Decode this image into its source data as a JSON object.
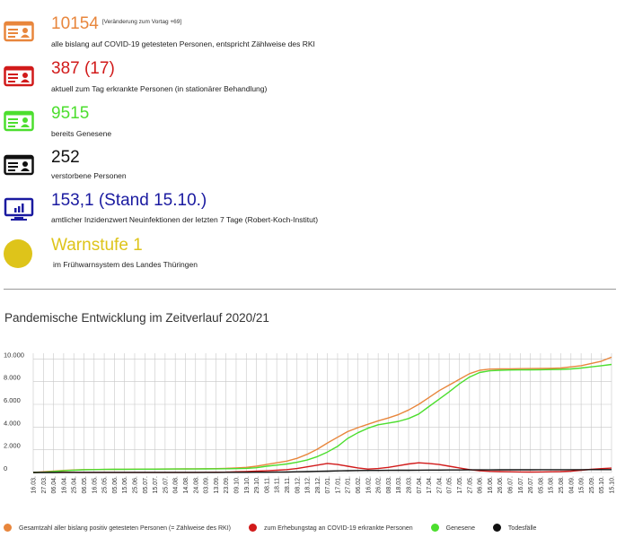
{
  "stats": {
    "tested": {
      "value": "10154",
      "note": "[Veränderung zum Vortag +69]",
      "label": "alle bislang auf COVID-19 getesteten Personen, entspricht Zählweise des RKI",
      "color": "#e8863c",
      "icon": "id-card-icon"
    },
    "sick": {
      "value": "387 (17)",
      "label": "aktuell zum Tag erkrankte Personen (in stationärer Behandlung)",
      "color": "#d11a1a",
      "icon": "id-card-icon"
    },
    "recovered": {
      "value": "9515",
      "label": "bereits Genesene",
      "color": "#4cde2e",
      "icon": "id-card-icon"
    },
    "deaths": {
      "value": "252",
      "label": "verstorbene Personen",
      "color": "#111111",
      "icon": "id-card-icon"
    },
    "incidence": {
      "value": "153,1 (Stand 15.10.)",
      "label": "amtlicher Inzidenzwert Neuinfektionen der letzten 7 Tage (Robert-Koch-Institut)",
      "color": "#1a1aa0",
      "icon": "monitor-chart-icon"
    },
    "warning": {
      "value": "Warnstufe 1",
      "label": "im Frühwarnsystem des Landes Thüringen",
      "color": "#dec41a",
      "icon": "yellow-circle-icon"
    }
  },
  "chart_title": "Pandemische Entwicklung im Zeitverlauf 2020/21",
  "chart_data": {
    "type": "line",
    "ylim": [
      0,
      10500
    ],
    "y_ticks": [
      "0",
      "2.000",
      "4.000",
      "6.000",
      "8.000",
      "10.000"
    ],
    "y_tick_values": [
      0,
      2000,
      4000,
      6000,
      8000,
      10000
    ],
    "grid": true,
    "legend_position": "bottom",
    "x_labels": [
      "16.03.",
      "27.03.",
      "06.04.",
      "16.04.",
      "25.04.",
      "06.05.",
      "16.05.",
      "25.05.",
      "05.06.",
      "15.06.",
      "25.06.",
      "05.07.",
      "15.07.",
      "25.07.",
      "04.08.",
      "14.08.",
      "24.08.",
      "03.09.",
      "13.09.",
      "23.09.",
      "09.10.",
      "19.10.",
      "29.10.",
      "08.11.",
      "18.11.",
      "28.11.",
      "08.12.",
      "18.12.",
      "28.12.",
      "07.01.",
      "17.01.",
      "27.01.",
      "06.02.",
      "16.02.",
      "26.02.",
      "08.03.",
      "18.03.",
      "28.03.",
      "07.04.",
      "17.04.",
      "27.04.",
      "07.05.",
      "17.05.",
      "27.05.",
      "06.06.",
      "16.06.",
      "26.06.",
      "06.07.",
      "16.07.",
      "26.07.",
      "05.08.",
      "15.08.",
      "25.08.",
      "04.09.",
      "15.09.",
      "25.09.",
      "05.10.",
      "15.10."
    ],
    "series": [
      {
        "name": "Gesamtzahl aller bislang positiv getesteten Personen (= Zählweise des RKI)",
        "color": "#e8863c",
        "values": [
          0,
          60,
          120,
          180,
          220,
          250,
          260,
          270,
          280,
          285,
          290,
          295,
          300,
          305,
          310,
          315,
          320,
          330,
          340,
          360,
          400,
          450,
          550,
          700,
          850,
          1000,
          1250,
          1600,
          2050,
          2600,
          3100,
          3600,
          3950,
          4250,
          4550,
          4800,
          5100,
          5500,
          6000,
          6600,
          7200,
          7700,
          8200,
          8700,
          9000,
          9100,
          9120,
          9130,
          9140,
          9150,
          9160,
          9170,
          9200,
          9300,
          9400,
          9600,
          9800,
          10154
        ]
      },
      {
        "name": "zum Erhebungstag an COVID-19 erkrankte Personen",
        "color": "#d11a1a",
        "values": [
          0,
          20,
          40,
          30,
          15,
          5,
          5,
          5,
          5,
          5,
          5,
          5,
          5,
          5,
          5,
          5,
          10,
          15,
          20,
          30,
          60,
          90,
          120,
          150,
          200,
          250,
          350,
          500,
          650,
          800,
          700,
          550,
          400,
          300,
          350,
          450,
          600,
          750,
          850,
          800,
          700,
          550,
          400,
          250,
          150,
          100,
          80,
          60,
          50,
          40,
          50,
          60,
          80,
          120,
          200,
          280,
          340,
          387
        ]
      },
      {
        "name": "Genesene",
        "color": "#4cde2e",
        "values": [
          0,
          20,
          80,
          150,
          200,
          240,
          255,
          265,
          275,
          280,
          285,
          290,
          295,
          300,
          305,
          310,
          310,
          315,
          320,
          330,
          340,
          360,
          420,
          550,
          650,
          750,
          900,
          1100,
          1400,
          1800,
          2300,
          3000,
          3500,
          3900,
          4200,
          4350,
          4500,
          4750,
          5150,
          5800,
          6450,
          7100,
          7800,
          8400,
          8800,
          8950,
          9000,
          9020,
          9030,
          9040,
          9050,
          9060,
          9080,
          9120,
          9200,
          9300,
          9400,
          9515
        ]
      },
      {
        "name": "Todesfälle",
        "color": "#111111",
        "values": [
          0,
          0,
          2,
          5,
          8,
          10,
          10,
          10,
          10,
          10,
          10,
          10,
          10,
          10,
          10,
          10,
          10,
          10,
          10,
          12,
          14,
          16,
          20,
          25,
          30,
          40,
          60,
          80,
          100,
          120,
          140,
          160,
          170,
          180,
          185,
          190,
          195,
          200,
          205,
          210,
          215,
          220,
          225,
          228,
          230,
          232,
          234,
          236,
          238,
          240,
          242,
          244,
          245,
          246,
          248,
          250,
          251,
          252
        ]
      }
    ]
  }
}
